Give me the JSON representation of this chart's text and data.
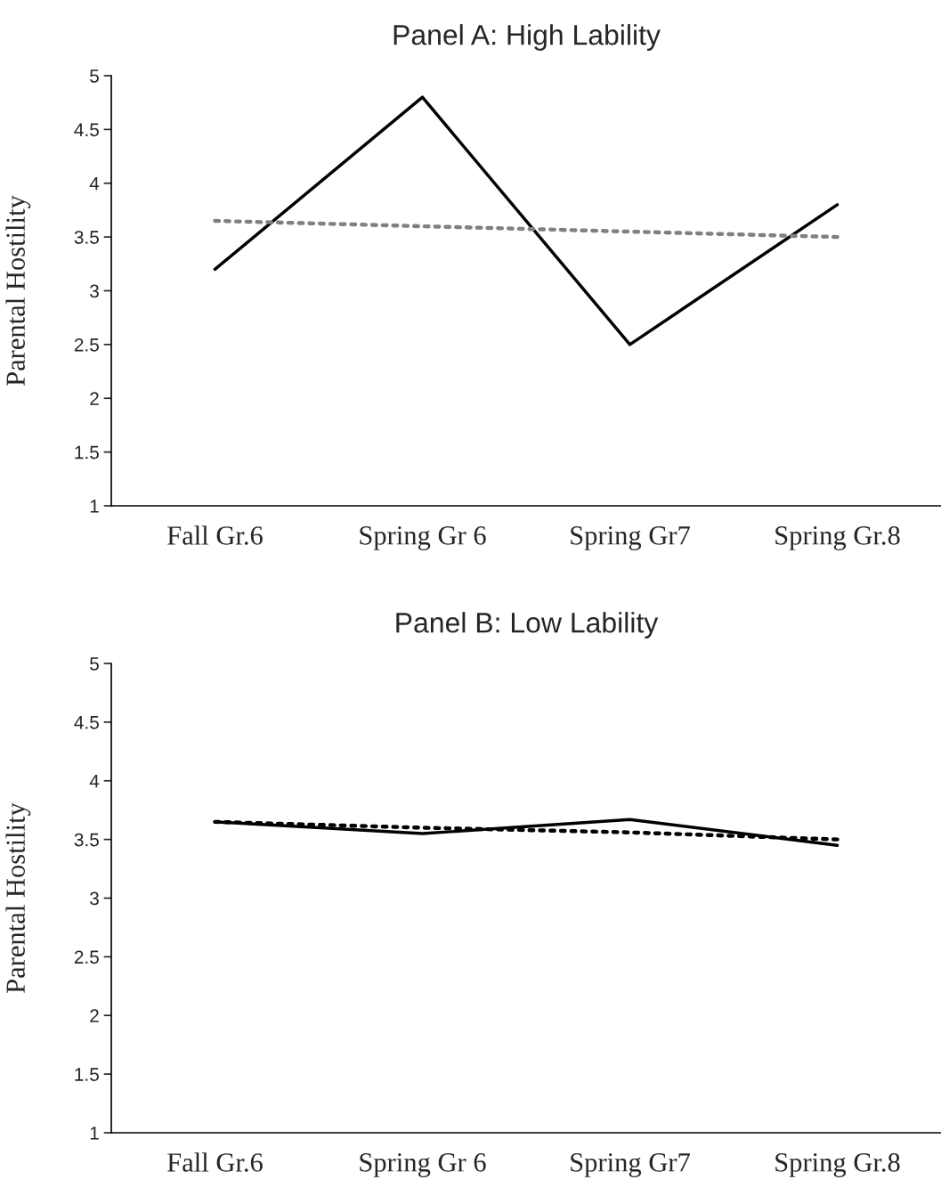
{
  "chart_data": [
    {
      "type": "line",
      "title": "Panel A: High Lability",
      "ylabel": "Parental Hostility",
      "categories": [
        "Fall Gr.6",
        "Spring Gr 6",
        "Spring Gr7",
        "Spring Gr.8"
      ],
      "series": [
        {
          "color": "#000000",
          "line_style": "solid",
          "values": [
            3.2,
            4.8,
            2.5,
            3.8
          ]
        },
        {
          "color": "#808080",
          "line_style": "dotted",
          "values": [
            3.65,
            3.6,
            3.55,
            3.5
          ]
        }
      ],
      "ylim": [
        1,
        5
      ],
      "yticks": [
        1,
        1.5,
        2,
        2.5,
        3,
        3.5,
        4,
        4.5,
        5
      ],
      "grid": false,
      "marker": "none"
    },
    {
      "type": "line",
      "title": "Panel B: Low Lability",
      "ylabel": "Parental Hostility",
      "categories": [
        "Fall Gr.6",
        "Spring Gr 6",
        "Spring Gr7",
        "Spring Gr.8"
      ],
      "series": [
        {
          "color": "#000000",
          "line_style": "solid",
          "values": [
            3.65,
            3.55,
            3.67,
            3.45
          ]
        },
        {
          "color": "#000000",
          "line_style": "dotted",
          "values": [
            3.65,
            3.6,
            3.56,
            3.5
          ]
        }
      ],
      "ylim": [
        1,
        5
      ],
      "yticks": [
        1,
        1.5,
        2,
        2.5,
        3,
        3.5,
        4,
        4.5,
        5
      ],
      "grid": false,
      "marker": "none"
    }
  ]
}
